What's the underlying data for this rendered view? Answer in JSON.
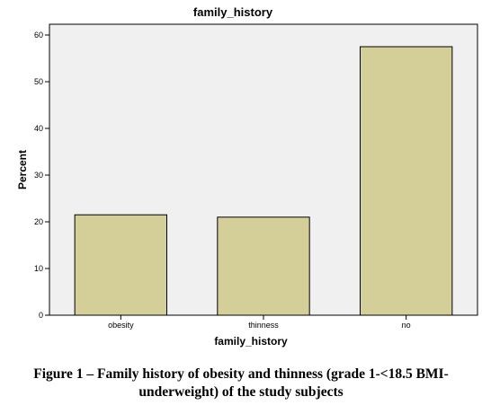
{
  "chart_data": {
    "type": "bar",
    "title": "family_history",
    "xlabel": "family_history",
    "ylabel": "Percent",
    "categories": [
      "obesity",
      "thinness",
      "no"
    ],
    "values": [
      21.5,
      21.0,
      57.5
    ],
    "ylim": [
      0,
      63
    ],
    "yticks": [
      0,
      10,
      20,
      30,
      40,
      50,
      60
    ],
    "grid": false,
    "legend": "none",
    "colors": {
      "bar_fill": "#d4cf99",
      "bar_stroke": "#000000",
      "plot_background": "#f0f0f0"
    }
  },
  "caption": {
    "line1": "Figure 1 – Family history of obesity and thinness (grade 1-<18.5 BMI-",
    "line2": "underweight) of the study subjects"
  }
}
